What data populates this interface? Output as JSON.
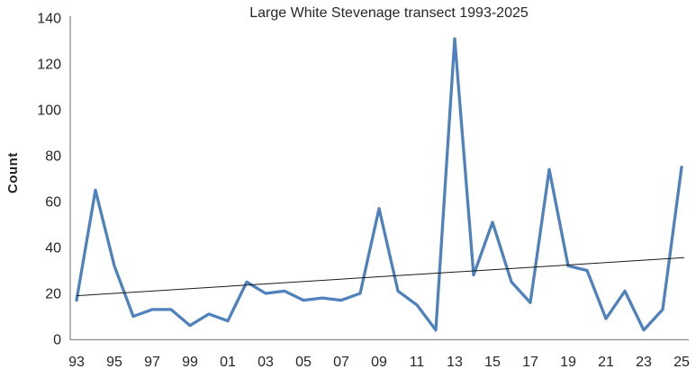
{
  "chart_data": {
    "type": "line",
    "title": "Large White Stevenage transect 1993-2025",
    "ylabel": "Count",
    "xlabel": "",
    "x": [
      1993,
      1994,
      1995,
      1996,
      1997,
      1998,
      1999,
      2000,
      2001,
      2002,
      2003,
      2004,
      2005,
      2006,
      2007,
      2008,
      2009,
      2010,
      2011,
      2012,
      2013,
      2014,
      2015,
      2016,
      2017,
      2018,
      2019,
      2020,
      2021,
      2022,
      2023,
      2024,
      2025
    ],
    "series": [
      {
        "name": "Count",
        "values": [
          17,
          65,
          32,
          10,
          13,
          13,
          6,
          11,
          8,
          25,
          20,
          21,
          17,
          18,
          17,
          20,
          57,
          21,
          15,
          4,
          131,
          28,
          51,
          25,
          16,
          74,
          32,
          30,
          9,
          21,
          4,
          13,
          75
        ]
      }
    ],
    "trendline": {
      "type": "linear",
      "start_value": 19,
      "end_value": 35.5
    },
    "ylim": [
      0,
      140
    ],
    "ytick_step": 20,
    "ytick_labels": [
      "0",
      "20",
      "40",
      "60",
      "80",
      "100",
      "120",
      "140"
    ],
    "xtick_every": 2,
    "xtick_labels": [
      "93",
      "95",
      "97",
      "99",
      "01",
      "03",
      "05",
      "07",
      "09",
      "11",
      "13",
      "15",
      "17",
      "19",
      "21",
      "23",
      "25"
    ],
    "grid": false,
    "legend": "none"
  },
  "colors": {
    "series": "#4F81BD",
    "trend": "#1a1a1a",
    "axis": "#8C8C8C",
    "text": "#262626"
  }
}
